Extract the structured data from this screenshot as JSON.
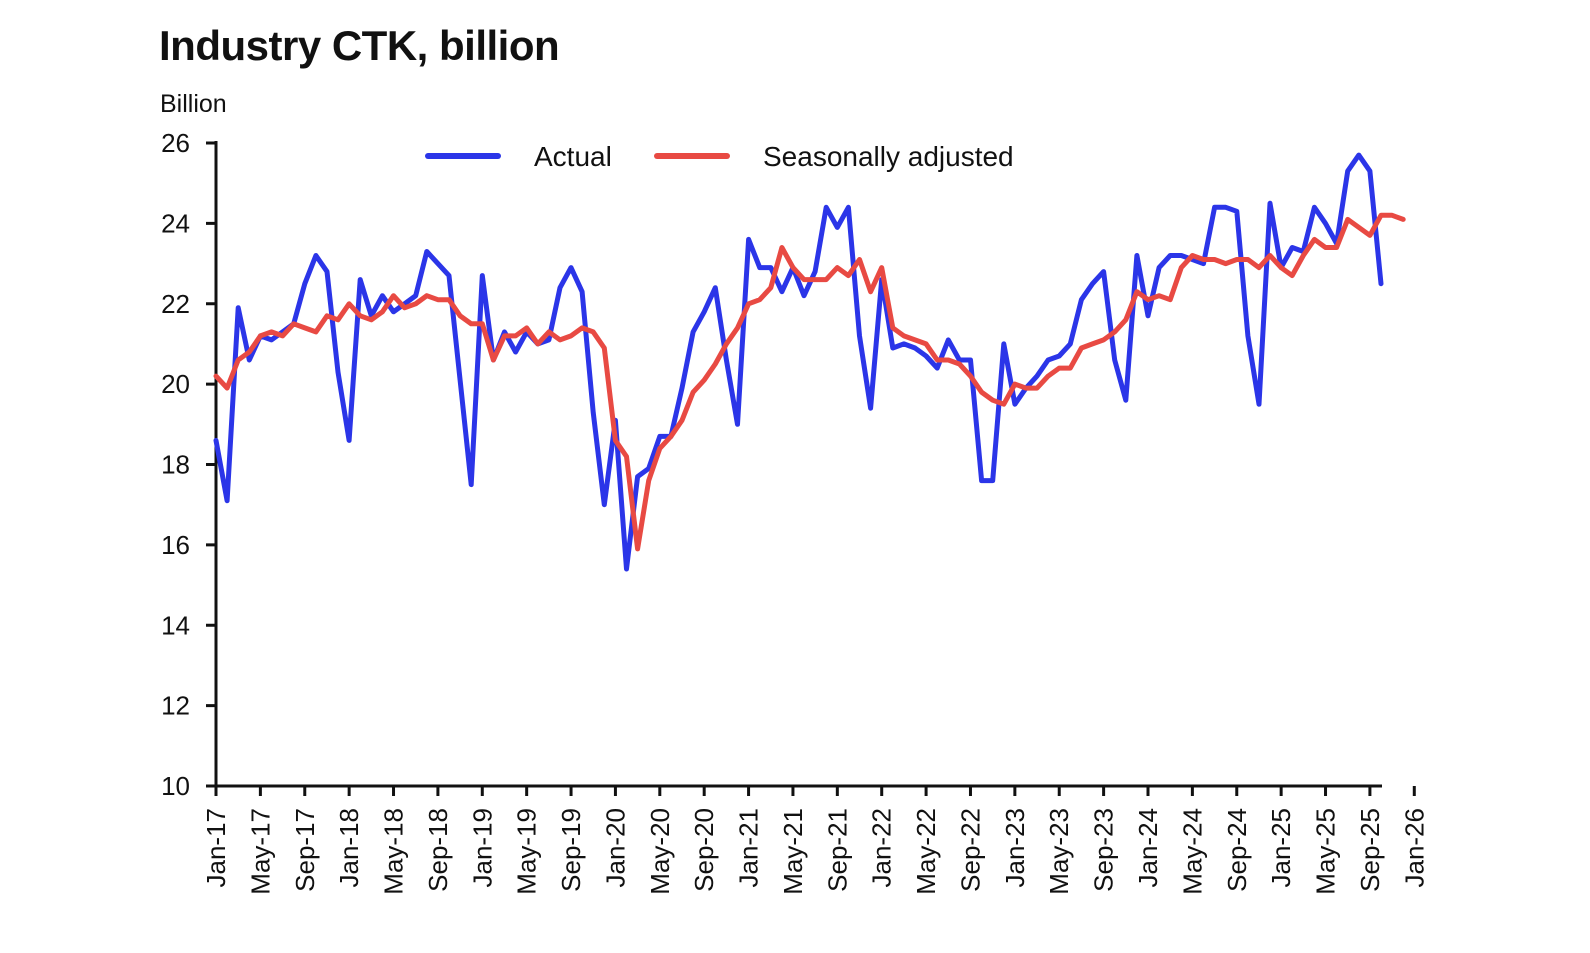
{
  "chart_data": {
    "type": "line",
    "title": "Industry CTK, billion",
    "ylabel": "Billion",
    "xlabel": "",
    "ylim": [
      10,
      26
    ],
    "yticks": [
      10,
      12,
      14,
      16,
      18,
      20,
      22,
      24,
      26
    ],
    "grid": false,
    "legend_position": "top-center",
    "x_start": "Jan-17",
    "x_end": "Jan-26",
    "x_ticks": [
      "Jan-17",
      "May-17",
      "Sep-17",
      "Jan-18",
      "May-18",
      "Sep-18",
      "Jan-19",
      "May-19",
      "Sep-19",
      "Jan-20",
      "May-20",
      "Sep-20",
      "Jan-21",
      "May-21",
      "Sep-21",
      "Jan-22",
      "May-22",
      "Sep-22",
      "Jan-23",
      "May-23",
      "Sep-23",
      "Jan-24",
      "May-24",
      "Sep-24",
      "Jan-25",
      "May-25",
      "Sep-25",
      "Jan-26"
    ],
    "series": [
      {
        "name": "Actual",
        "color": "#2b35e8",
        "values": [
          18.6,
          17.1,
          21.9,
          20.6,
          21.2,
          21.1,
          21.3,
          21.5,
          22.5,
          23.2,
          22.8,
          20.3,
          18.6,
          22.6,
          21.7,
          22.2,
          21.8,
          22.0,
          22.2,
          23.3,
          23.0,
          22.7,
          20.1,
          17.5,
          22.7,
          20.6,
          21.3,
          20.8,
          21.3,
          21.0,
          21.1,
          22.4,
          22.9,
          22.3,
          19.3,
          17.0,
          19.1,
          15.4,
          17.7,
          17.9,
          18.7,
          18.7,
          19.9,
          21.3,
          21.8,
          22.4,
          20.6,
          19.0,
          23.6,
          22.9,
          22.9,
          22.3,
          22.9,
          22.2,
          22.8,
          24.4,
          23.9,
          24.4,
          21.2,
          19.4,
          22.6,
          20.9,
          21.0,
          20.9,
          20.7,
          20.4,
          21.1,
          20.6,
          20.6,
          17.6,
          17.6,
          21.0,
          19.5,
          19.9,
          20.2,
          20.6,
          20.7,
          21.0,
          22.1,
          22.5,
          22.8,
          20.6,
          19.6,
          23.2,
          21.7,
          22.9,
          23.2,
          23.2,
          23.1,
          23.0,
          24.4,
          24.4,
          24.3,
          21.2,
          19.5,
          24.5,
          22.9,
          23.4,
          23.3,
          24.4,
          24.0,
          23.5,
          25.3,
          25.7,
          25.3,
          22.5
        ]
      },
      {
        "name": "Seasonally adjusted",
        "color": "#e84a43",
        "values": [
          20.2,
          19.9,
          20.6,
          20.8,
          21.2,
          21.3,
          21.2,
          21.5,
          21.4,
          21.3,
          21.7,
          21.6,
          22.0,
          21.7,
          21.6,
          21.8,
          22.2,
          21.9,
          22.0,
          22.2,
          22.1,
          22.1,
          21.7,
          21.5,
          21.5,
          20.6,
          21.2,
          21.2,
          21.4,
          21.0,
          21.3,
          21.1,
          21.2,
          21.4,
          21.3,
          20.9,
          18.6,
          18.2,
          15.9,
          17.6,
          18.4,
          18.7,
          19.1,
          19.8,
          20.1,
          20.5,
          21.0,
          21.4,
          22.0,
          22.1,
          22.4,
          23.4,
          22.9,
          22.6,
          22.6,
          22.6,
          22.9,
          22.7,
          23.1,
          22.3,
          22.9,
          21.4,
          21.2,
          21.1,
          21.0,
          20.6,
          20.6,
          20.5,
          20.2,
          19.8,
          19.6,
          19.5,
          20.0,
          19.9,
          19.9,
          20.2,
          20.4,
          20.4,
          20.9,
          21.0,
          21.1,
          21.3,
          21.6,
          22.3,
          22.1,
          22.2,
          22.1,
          22.9,
          23.2,
          23.1,
          23.1,
          23.0,
          23.1,
          23.1,
          22.9,
          23.2,
          22.9,
          22.7,
          23.2,
          23.6,
          23.4,
          23.4,
          24.1,
          23.9,
          23.7,
          24.2,
          24.2,
          24.1
        ]
      }
    ]
  }
}
